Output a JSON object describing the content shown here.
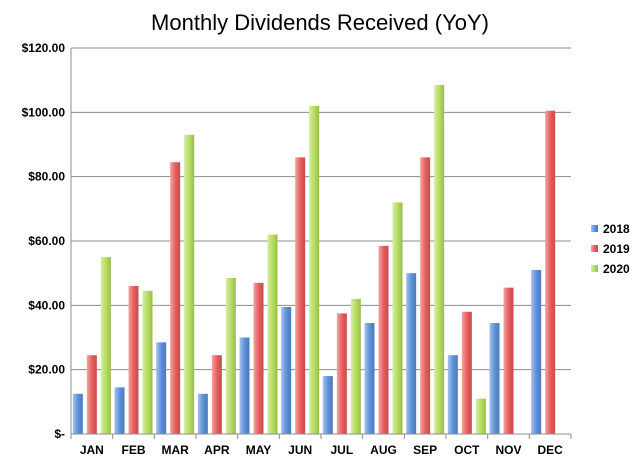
{
  "chart_data": {
    "type": "bar",
    "title": "Monthly Dividends Received (YoY)",
    "xlabel": "",
    "ylabel": "",
    "categories": [
      "JAN",
      "FEB",
      "MAR",
      "APR",
      "MAY",
      "JUN",
      "JUL",
      "AUG",
      "SEP",
      "OCT",
      "NOV",
      "DEC"
    ],
    "series": [
      {
        "name": "2018",
        "color": "#5b8fd8",
        "values": [
          12.5,
          14.5,
          28.5,
          12.5,
          30,
          39.5,
          18,
          34.5,
          50,
          24.5,
          34.5,
          51
        ]
      },
      {
        "name": "2019",
        "color": "#e85a5a",
        "values": [
          24.5,
          46,
          84.5,
          24.5,
          47,
          86,
          37.5,
          58.5,
          86,
          38,
          45.5,
          100.5
        ]
      },
      {
        "name": "2020",
        "color": "#b4dc5c",
        "values": [
          55,
          44.5,
          93,
          48.5,
          62,
          102,
          42,
          72,
          108.5,
          11,
          null,
          null
        ]
      }
    ],
    "ylim": [
      0,
      120
    ],
    "yticks": [
      0,
      20,
      40,
      60,
      80,
      100,
      120
    ],
    "ytick_labels": [
      "$-",
      "$20.00",
      "$40.00",
      "$60.00",
      "$80.00",
      "$100.00",
      "$120.00"
    ],
    "grid": true,
    "legend_position": "right"
  }
}
